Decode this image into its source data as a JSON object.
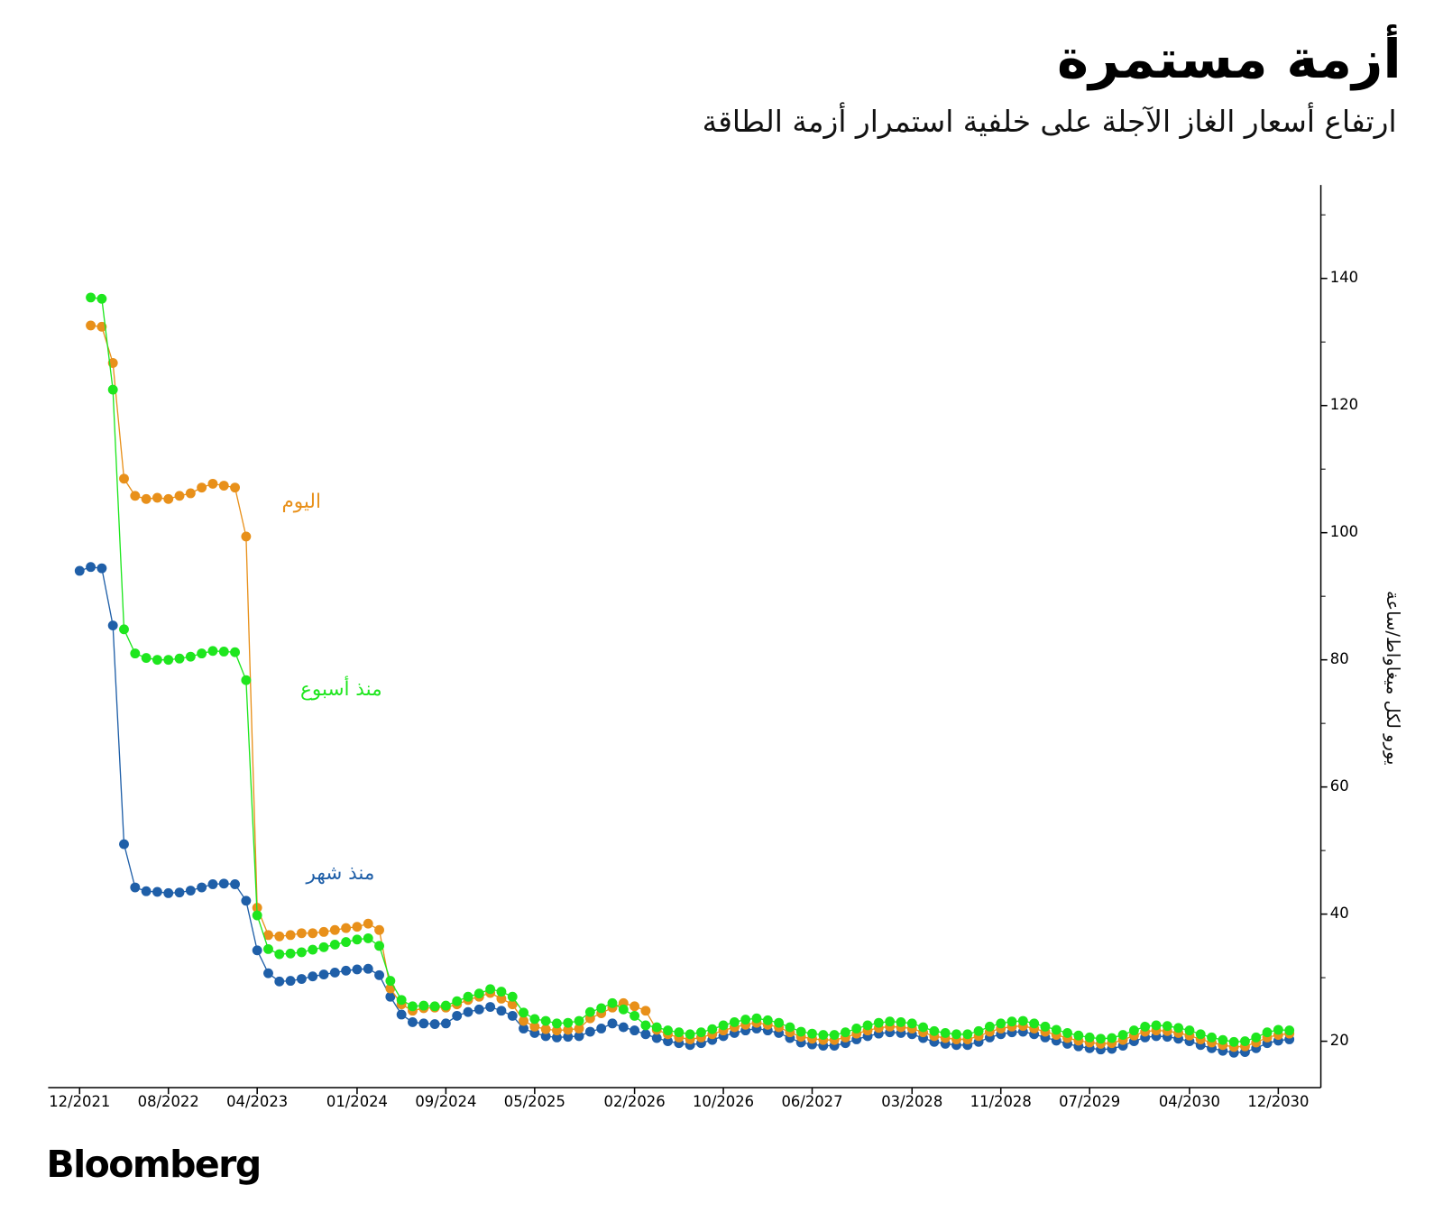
{
  "chart_data": {
    "type": "line",
    "title": "أزمة مستمرة",
    "subtitle": "ارتفاع أسعار الغاز الآجلة على خلفية استمرار أزمة الطاقة",
    "ylabel": "يورو لكل ميغاواط/ساعة",
    "source": "Bloomberg",
    "x": [
      "12/2021",
      "01/2022",
      "02/2022",
      "03/2022",
      "04/2022",
      "05/2022",
      "06/2022",
      "07/2022",
      "08/2022",
      "09/2022",
      "10/2022",
      "11/2022",
      "12/2022",
      "01/2023",
      "02/2023",
      "03/2023",
      "04/2023",
      "05/2023",
      "06/2023",
      "07/2023",
      "08/2023",
      "09/2023",
      "10/2023",
      "11/2023",
      "12/2023",
      "01/2024",
      "02/2024",
      "03/2024",
      "04/2024",
      "05/2024",
      "06/2024",
      "07/2024",
      "08/2024",
      "09/2024",
      "10/2024",
      "11/2024",
      "12/2024",
      "01/2025",
      "02/2025",
      "03/2025",
      "04/2025",
      "05/2025",
      "06/2025",
      "07/2025",
      "08/2025",
      "09/2025",
      "10/2025",
      "11/2025",
      "12/2025",
      "01/2026",
      "02/2026",
      "03/2026",
      "04/2026",
      "05/2026",
      "06/2026",
      "07/2026",
      "08/2026",
      "09/2026",
      "10/2026",
      "11/2026",
      "12/2026",
      "01/2027",
      "02/2027",
      "03/2027",
      "04/2027",
      "05/2027",
      "06/2027",
      "07/2027",
      "08/2027",
      "09/2027",
      "10/2027",
      "11/2027",
      "12/2027",
      "01/2028",
      "02/2028",
      "03/2028",
      "04/2028",
      "05/2028",
      "06/2028",
      "07/2028",
      "08/2028",
      "09/2028",
      "10/2028",
      "11/2028",
      "12/2028",
      "01/2029",
      "02/2029",
      "03/2029",
      "04/2029",
      "05/2029",
      "06/2029",
      "07/2029",
      "08/2029",
      "09/2029",
      "10/2029",
      "11/2029",
      "12/2029",
      "01/2030",
      "02/2030",
      "03/2030",
      "04/2030",
      "05/2030",
      "06/2030",
      "07/2030",
      "08/2030",
      "09/2030",
      "10/2030",
      "11/2030",
      "12/2030",
      "01/2031"
    ],
    "series": [
      {
        "name": "منذ شهر",
        "color": "#1f5fa8",
        "values": [
          94,
          94.6,
          94.4,
          85.4,
          51,
          44.2,
          43.6,
          43.5,
          43.3,
          43.4,
          43.7,
          44.2,
          44.7,
          44.8,
          44.7,
          42.1,
          34.3,
          30.7,
          29.4,
          29.5,
          29.8,
          30.2,
          30.5,
          30.8,
          31.1,
          31.3,
          31.4,
          30.4,
          27,
          24.2,
          23,
          22.8,
          22.7,
          22.8,
          24,
          24.6,
          25,
          25.4,
          24.8,
          24,
          22,
          21.3,
          20.8,
          20.6,
          20.7,
          20.8,
          21.5,
          22,
          22.8,
          22.2,
          21.7,
          21.1,
          20.5,
          20,
          19.7,
          19.4,
          19.7,
          20.2,
          20.8,
          21.3,
          21.7,
          22,
          21.7,
          21.3,
          20.5,
          19.8,
          19.5,
          19.3,
          19.3,
          19.7,
          20.3,
          20.8,
          21.2,
          21.4,
          21.3,
          21.1,
          20.5,
          19.9,
          19.6,
          19.4,
          19.4,
          19.9,
          20.6,
          21.1,
          21.4,
          21.5,
          21.1,
          20.6,
          20.1,
          19.6,
          19.2,
          18.9,
          18.7,
          18.8,
          19.3,
          20,
          20.6,
          20.8,
          20.7,
          20.4,
          20,
          19.4,
          18.9,
          18.5,
          18.2,
          18.3,
          18.9,
          19.7,
          20.1,
          20.3
        ]
      },
      {
        "name": "اليوم",
        "color": "#e8901a",
        "values": [
          null,
          132.6,
          132.4,
          126.7,
          108.5,
          105.8,
          105.3,
          105.5,
          105.3,
          105.8,
          106.2,
          107.1,
          107.7,
          107.4,
          107.1,
          99.4,
          41,
          36.7,
          36.5,
          36.7,
          37,
          37,
          37.2,
          37.5,
          37.8,
          38,
          38.5,
          37.5,
          28.3,
          25.8,
          24.8,
          25.2,
          25.3,
          25.3,
          25.8,
          26.5,
          27,
          27.6,
          26.7,
          25.8,
          23.2,
          22.3,
          21.9,
          21.7,
          21.8,
          22,
          23.6,
          24.4,
          25.3,
          26,
          25.5,
          24.8,
          21.8,
          21.1,
          20.6,
          20.3,
          20.6,
          21.1,
          21.7,
          22.2,
          22.6,
          22.9,
          22.6,
          22.2,
          21.4,
          20.7,
          20.4,
          20.2,
          20.2,
          20.6,
          21.2,
          21.7,
          22.1,
          22.3,
          22.2,
          22,
          21.4,
          20.8,
          20.5,
          20.3,
          20.3,
          20.8,
          21.5,
          22,
          22.3,
          22.4,
          22,
          21.5,
          21,
          20.5,
          20.1,
          19.8,
          19.6,
          19.7,
          20.2,
          20.9,
          21.5,
          21.7,
          21.6,
          21.3,
          20.9,
          20.3,
          19.8,
          19.4,
          19.1,
          19.2,
          19.8,
          20.6,
          21,
          21.2
        ]
      },
      {
        "name": "منذ أسبوع",
        "color": "#1ee61e",
        "values": [
          null,
          137,
          136.8,
          122.5,
          84.8,
          81,
          80.3,
          80,
          80,
          80.2,
          80.5,
          81,
          81.4,
          81.3,
          81.2,
          76.8,
          39.8,
          34.5,
          33.7,
          33.8,
          34,
          34.4,
          34.8,
          35.2,
          35.6,
          36,
          36.2,
          35,
          29.5,
          26.5,
          25.5,
          25.6,
          25.5,
          25.6,
          26.3,
          27,
          27.5,
          28.2,
          27.8,
          27,
          24.5,
          23.5,
          23.2,
          22.8,
          22.9,
          23.2,
          24.6,
          25.2,
          26,
          25,
          24,
          22.5,
          22.2,
          21.7,
          21.4,
          21.1,
          21.4,
          21.9,
          22.5,
          23,
          23.4,
          23.6,
          23.3,
          22.9,
          22.2,
          21.5,
          21.2,
          21,
          21,
          21.4,
          22,
          22.5,
          22.9,
          23.1,
          23,
          22.8,
          22.2,
          21.6,
          21.3,
          21.1,
          21.1,
          21.6,
          22.3,
          22.8,
          23.1,
          23.2,
          22.8,
          22.3,
          21.8,
          21.3,
          20.9,
          20.6,
          20.4,
          20.5,
          21,
          21.7,
          22.3,
          22.5,
          22.4,
          22.1,
          21.7,
          21.1,
          20.6,
          20.2,
          19.9,
          20,
          20.6,
          21.4,
          21.8,
          21.7
        ]
      }
    ],
    "xticks": [
      "12/2021",
      "08/2022",
      "04/2023",
      "01/2024",
      "09/2024",
      "05/2025",
      "02/2026",
      "10/2026",
      "06/2027",
      "03/2028",
      "11/2028",
      "07/2029",
      "04/2030",
      "12/2030"
    ],
    "ylim": [
      12.7,
      154.7
    ],
    "yticks": [
      20,
      40,
      60,
      80,
      100,
      120,
      140
    ],
    "yminor_ticks": [
      30,
      50,
      70,
      90,
      110,
      130,
      150
    ],
    "y_axis_side": "right"
  }
}
